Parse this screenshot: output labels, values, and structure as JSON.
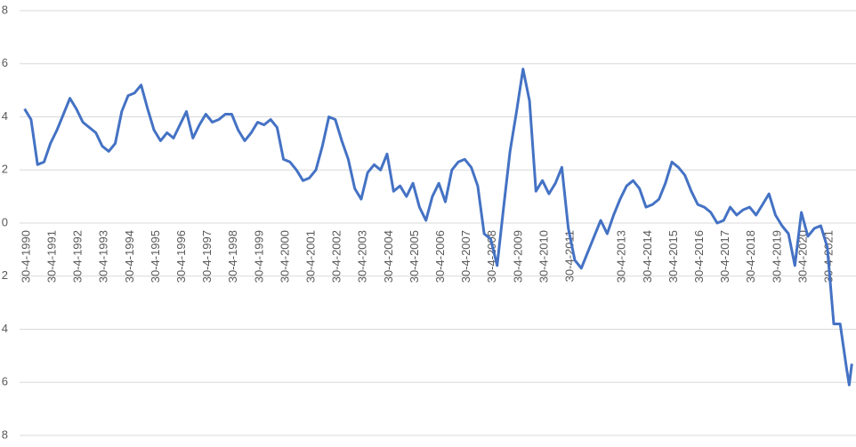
{
  "chart_data": {
    "type": "line",
    "xlim": [
      1989.3,
      2022.36
    ],
    "ylim": [
      -8,
      8
    ],
    "yticks": [
      8,
      6,
      4,
      2,
      0,
      {
        "value": -2,
        "label": "2"
      },
      {
        "value": -4,
        "label": "4"
      },
      {
        "value": -6,
        "label": "6"
      },
      {
        "value": -8,
        "label": "8"
      }
    ],
    "xticks": [
      {
        "value": 1990.33,
        "label": "30-4-1990"
      },
      {
        "value": 1991.33,
        "label": "30-4-1991"
      },
      {
        "value": 1992.33,
        "label": "30-4-1992"
      },
      {
        "value": 1993.33,
        "label": "30-4-1993"
      },
      {
        "value": 1994.33,
        "label": "30-4-1994"
      },
      {
        "value": 1995.33,
        "label": "30-4-1995"
      },
      {
        "value": 1996.33,
        "label": "30-4-1996"
      },
      {
        "value": 1997.33,
        "label": "30-4-1997"
      },
      {
        "value": 1998.33,
        "label": "30-4-1998"
      },
      {
        "value": 1999.33,
        "label": "30-4-1999"
      },
      {
        "value": 2000.33,
        "label": "30-4-2000"
      },
      {
        "value": 2001.33,
        "label": "30-4-2001"
      },
      {
        "value": 2002.33,
        "label": "30-4-2002"
      },
      {
        "value": 2003.33,
        "label": "30-4-2003"
      },
      {
        "value": 2004.33,
        "label": "30-4-2004"
      },
      {
        "value": 2005.33,
        "label": "30-4-2005"
      },
      {
        "value": 2006.33,
        "label": "30-4-2006"
      },
      {
        "value": 2007.33,
        "label": "30-4-2007"
      },
      {
        "value": 2008.33,
        "label": "30-4-2008"
      },
      {
        "value": 2009.33,
        "label": "30-4-2009"
      },
      {
        "value": 2010.33,
        "label": "30-4-2010"
      },
      {
        "value": 2011.33,
        "label": "30-4-2011"
      },
      {
        "value": 2013.33,
        "label": "30-4-2013"
      },
      {
        "value": 2014.33,
        "label": "30-4-2014"
      },
      {
        "value": 2015.33,
        "label": "30-4-2015"
      },
      {
        "value": 2016.33,
        "label": "30-4-2016"
      },
      {
        "value": 2017.33,
        "label": "30-4-2017"
      },
      {
        "value": 2018.33,
        "label": "30-4-2018"
      },
      {
        "value": 2019.33,
        "label": "30-4-2019"
      },
      {
        "value": 2020.33,
        "label": "30-4-2020"
      },
      {
        "value": 2021.33,
        "label": "30-4-2021"
      }
    ],
    "grid": true,
    "series": [
      {
        "color": "#4472c4",
        "x": [
          1990.25,
          1990.5,
          1990.75,
          1991,
          1991.25,
          1991.5,
          1991.75,
          1992,
          1992.25,
          1992.5,
          1992.75,
          1993,
          1993.25,
          1993.5,
          1993.75,
          1994,
          1994.25,
          1994.5,
          1994.75,
          1995,
          1995.25,
          1995.5,
          1995.75,
          1996,
          1996.25,
          1996.5,
          1996.75,
          1997,
          1997.25,
          1997.5,
          1997.75,
          1998,
          1998.25,
          1998.5,
          1998.75,
          1999,
          1999.25,
          1999.5,
          1999.75,
          2000,
          2000.25,
          2000.5,
          2000.75,
          2001,
          2001.25,
          2001.5,
          2001.75,
          2002,
          2002.25,
          2002.5,
          2002.75,
          2003,
          2003.25,
          2003.5,
          2003.75,
          2004,
          2004.25,
          2004.5,
          2004.75,
          2005,
          2005.25,
          2005.5,
          2005.75,
          2006,
          2006.25,
          2006.5,
          2006.75,
          2007,
          2007.25,
          2007.5,
          2007.75,
          2008,
          2008.25,
          2008.5,
          2008.75,
          2009,
          2009.25,
          2009.5,
          2009.75,
          2010,
          2010.25,
          2010.5,
          2010.75,
          2011,
          2011.25,
          2011.5,
          2011.75,
          2012,
          2012.25,
          2012.5,
          2012.75,
          2013,
          2013.25,
          2013.5,
          2013.75,
          2014,
          2014.25,
          2014.5,
          2014.75,
          2015,
          2015.25,
          2015.5,
          2015.75,
          2016,
          2016.25,
          2016.5,
          2016.75,
          2017,
          2017.25,
          2017.5,
          2017.75,
          2018,
          2018.25,
          2018.5,
          2018.75,
          2019,
          2019.25,
          2019.5,
          2019.75,
          2020,
          2020.25,
          2020.5,
          2020.75,
          2021,
          2021.25,
          2021.5,
          2021.75,
          2022,
          2022.1,
          2022.2
        ],
        "values": [
          4.3,
          3.9,
          2.2,
          2.3,
          3.0,
          3.5,
          4.1,
          4.7,
          4.3,
          3.8,
          3.6,
          3.4,
          2.9,
          2.7,
          3.0,
          4.2,
          4.8,
          4.9,
          5.2,
          4.3,
          3.5,
          3.1,
          3.4,
          3.2,
          3.7,
          4.2,
          3.2,
          3.7,
          4.1,
          3.8,
          3.9,
          4.1,
          4.1,
          3.5,
          3.1,
          3.4,
          3.8,
          3.7,
          3.9,
          3.6,
          2.4,
          2.3,
          2.0,
          1.6,
          1.7,
          2.0,
          2.9,
          4.0,
          3.9,
          3.1,
          2.4,
          1.3,
          0.9,
          1.9,
          2.2,
          2.0,
          2.6,
          1.2,
          1.4,
          1.0,
          1.5,
          0.6,
          0.1,
          1.0,
          1.5,
          0.8,
          2.0,
          2.3,
          2.4,
          2.1,
          1.4,
          -0.4,
          -0.6,
          -1.6,
          0.6,
          2.7,
          4.2,
          5.8,
          4.6,
          1.2,
          1.6,
          1.1,
          1.5,
          2.1,
          -0.2,
          -1.4,
          -1.7,
          -1.1,
          -0.5,
          0.1,
          -0.4,
          0.3,
          0.9,
          1.4,
          1.6,
          1.3,
          0.6,
          0.7,
          0.9,
          1.5,
          2.3,
          2.1,
          1.8,
          1.2,
          0.7,
          0.6,
          0.4,
          0.0,
          0.1,
          0.6,
          0.3,
          0.5,
          0.6,
          0.3,
          0.7,
          1.1,
          0.3,
          -0.1,
          -0.4,
          -1.6,
          0.4,
          -0.5,
          -0.2,
          -0.1,
          -0.9,
          -3.8,
          -3.8,
          -5.5,
          -6.1,
          -5.3
        ]
      }
    ]
  }
}
